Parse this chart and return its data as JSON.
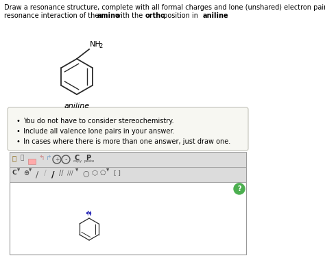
{
  "line1": "Draw a resonance structure, complete with all formal charges and lone (unshared) electron pairs, that shows the",
  "line2_parts": [
    [
      "resonance interaction of the ",
      false
    ],
    [
      "amino",
      true
    ],
    [
      " with the ",
      false
    ],
    [
      "ortho",
      true
    ],
    [
      " position in ",
      false
    ],
    [
      "aniline",
      true
    ],
    [
      ".",
      false
    ]
  ],
  "bullet_points": [
    "You do not have to consider stereochemistry.",
    "Include all valence lone pairs in your answer.",
    "In cases where there is more than one answer, just draw one."
  ],
  "aniline_label": "aniline",
  "bg_color": "#ffffff",
  "box_bg": "#f7f7f2",
  "box_border": "#c8c8c0",
  "toolbar_bg": "#dcdcdc",
  "drawing_area_bg": "#ffffff",
  "drawing_border": "#999999",
  "help_btn_color": "#4caf50",
  "molecule_color": "#2a2a2a",
  "nitrogen_color": "#3333bb",
  "text_fontsize": 7.0,
  "bullet_fontsize": 7.0
}
